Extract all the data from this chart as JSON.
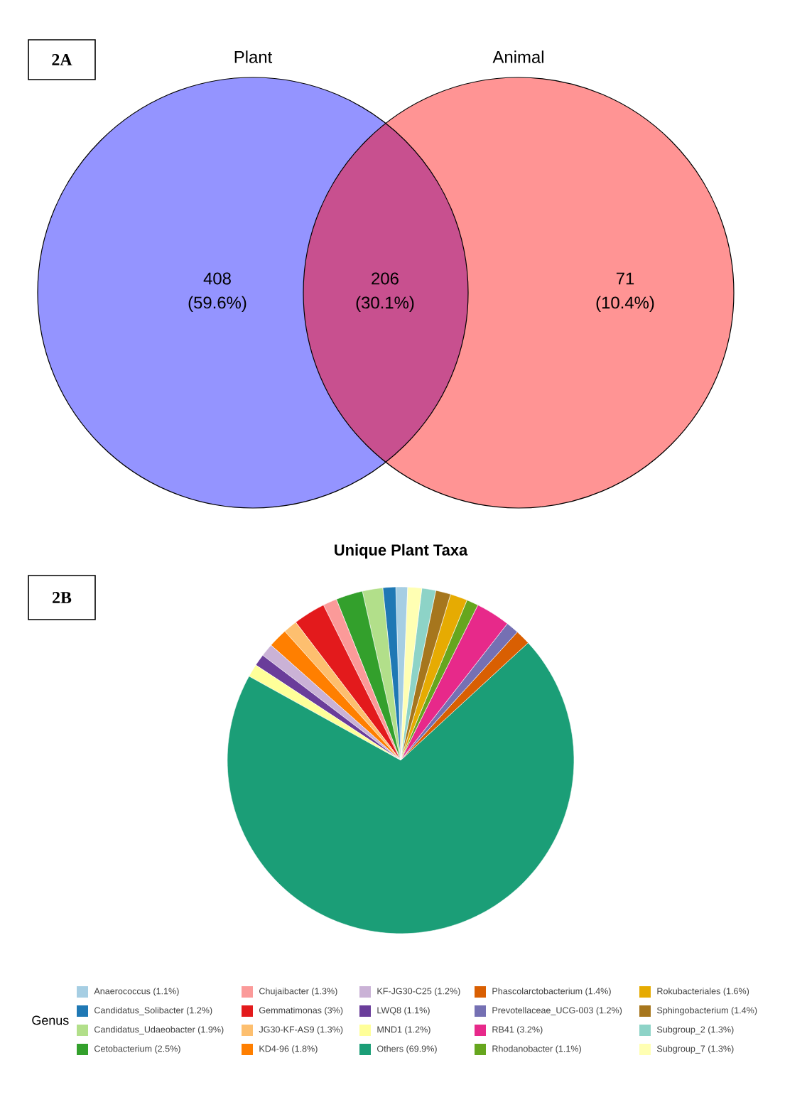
{
  "chart_data": [
    {
      "type": "other",
      "title": "2A",
      "annotations": [
        "Plant",
        "Animal",
        "(59.6%)",
        "(30.1%)",
        "(10.4%)"
      ],
      "categories": [
        null,
        null,
        null
      ],
      "values": [
        408,
        206,
        71
      ],
      "data_labels": true,
      "colors": [
        "#9494ff",
        "#c8508f",
        "#ff9494"
      ]
    },
    {
      "type": "pie",
      "title": "Unique Plant Taxa",
      "annotations": [
        "2B"
      ],
      "legend_title": "Genus",
      "legend": "bottom",
      "categories": [
        "Anaerococcus (1.1%)",
        "Candidatus_Solibacter (1.2%)",
        "Candidatus_Udaeobacter (1.9%)",
        "Cetobacterium (2.5%)",
        "Chujaibacter (1.3%)",
        "Gemmatimonas (3%)",
        "JG30-KF-AS9 (1.3%)",
        "KD4-96 (1.8%)",
        "KF-JG30-C25 (1.2%)",
        "LWQ8 (1.1%)",
        "MND1 (1.2%)",
        "Others (69.9%)",
        "Phascolarctobacterium (1.4%)",
        "Prevotellaceae_UCG-003 (1.2%)",
        "RB41 (3.2%)",
        "Rhodanobacter (1.1%)",
        "Rokubacteriales (1.6%)",
        "Sphingobacterium (1.4%)",
        "Subgroup_2 (1.3%)",
        "Subgroup_7 (1.3%)"
      ],
      "values": [
        1.1,
        1.2,
        1.9,
        2.5,
        1.3,
        3,
        1.3,
        1.8,
        1.2,
        1.1,
        1.2,
        69.9,
        1.4,
        1.2,
        3.2,
        1.1,
        1.6,
        1.4,
        1.3,
        1.3
      ],
      "colors": [
        "#a6cee3",
        "#1f78b4",
        "#b2df8a",
        "#33a02c",
        "#fb9a99",
        "#e31a1c",
        "#fdbf6f",
        "#ff7f00",
        "#cab2d6",
        "#6a3d9a",
        "#ffff99",
        "#1b9e77",
        "#d95f02",
        "#7570b3",
        "#e7298a",
        "#66a61e",
        "#e6ab02",
        "#a6761d",
        "#8dd3c7",
        "#ffffb3"
      ]
    }
  ]
}
